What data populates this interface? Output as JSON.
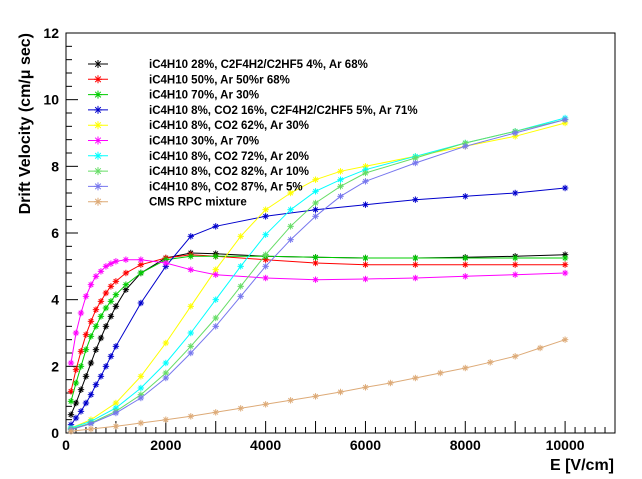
{
  "chart_data": {
    "type": "line",
    "title": "",
    "xlabel": "E [V/cm]",
    "ylabel": "Drift Velocity (cm/μ sec)",
    "xlim": [
      0,
      11000
    ],
    "ylim": [
      0,
      12
    ],
    "x_ticks": [
      0,
      2000,
      4000,
      6000,
      8000,
      10000
    ],
    "y_ticks": [
      0,
      2,
      4,
      6,
      8,
      10,
      12
    ],
    "grid": false,
    "legend_position": "top-left",
    "series": [
      {
        "name": "iC4H10 28%, C2F4H2/C2HF5 4%, Ar 68%",
        "color": "#000000",
        "points": [
          [
            100,
            0.55
          ],
          [
            200,
            0.9
          ],
          [
            300,
            1.3
          ],
          [
            400,
            1.7
          ],
          [
            500,
            2.1
          ],
          [
            600,
            2.5
          ],
          [
            700,
            2.85
          ],
          [
            800,
            3.2
          ],
          [
            900,
            3.5
          ],
          [
            1000,
            3.8
          ],
          [
            1200,
            4.3
          ],
          [
            1500,
            4.8
          ],
          [
            2000,
            5.25
          ],
          [
            2500,
            5.4
          ],
          [
            3000,
            5.38
          ],
          [
            4000,
            5.3
          ],
          [
            5000,
            5.27
          ],
          [
            6000,
            5.25
          ],
          [
            7000,
            5.25
          ],
          [
            8000,
            5.27
          ],
          [
            9000,
            5.3
          ],
          [
            10000,
            5.35
          ]
        ]
      },
      {
        "name": "iC4H10 50%, Ar 50%r 68%",
        "color": "#ff0000",
        "points": [
          [
            100,
            1.25
          ],
          [
            200,
            1.9
          ],
          [
            300,
            2.45
          ],
          [
            400,
            2.95
          ],
          [
            500,
            3.35
          ],
          [
            600,
            3.7
          ],
          [
            700,
            3.95
          ],
          [
            800,
            4.2
          ],
          [
            900,
            4.4
          ],
          [
            1000,
            4.55
          ],
          [
            1200,
            4.8
          ],
          [
            1500,
            5.05
          ],
          [
            2000,
            5.25
          ],
          [
            2500,
            5.35
          ],
          [
            3000,
            5.3
          ],
          [
            4000,
            5.2
          ],
          [
            5000,
            5.1
          ],
          [
            6000,
            5.05
          ],
          [
            7000,
            5.05
          ],
          [
            8000,
            5.05
          ],
          [
            9000,
            5.05
          ],
          [
            10000,
            5.05
          ]
        ]
      },
      {
        "name": "iC4H10 70%, Ar 30%",
        "color": "#00cc00",
        "points": [
          [
            100,
            0.95
          ],
          [
            200,
            1.5
          ],
          [
            300,
            2.0
          ],
          [
            400,
            2.5
          ],
          [
            500,
            2.9
          ],
          [
            600,
            3.2
          ],
          [
            700,
            3.5
          ],
          [
            800,
            3.75
          ],
          [
            900,
            3.95
          ],
          [
            1000,
            4.15
          ],
          [
            1200,
            4.45
          ],
          [
            1500,
            4.8
          ],
          [
            2000,
            5.2
          ],
          [
            2500,
            5.3
          ],
          [
            3000,
            5.3
          ],
          [
            4000,
            5.3
          ],
          [
            5000,
            5.27
          ],
          [
            6000,
            5.25
          ],
          [
            7000,
            5.25
          ],
          [
            8000,
            5.25
          ],
          [
            9000,
            5.25
          ],
          [
            10000,
            5.25
          ]
        ]
      },
      {
        "name": "iC4H10 8%, CO2 16%, C2F4H2/C2HF5 5%, Ar 71%",
        "color": "#0000cc",
        "points": [
          [
            100,
            0.25
          ],
          [
            200,
            0.45
          ],
          [
            300,
            0.65
          ],
          [
            400,
            0.9
          ],
          [
            500,
            1.15
          ],
          [
            600,
            1.45
          ],
          [
            700,
            1.7
          ],
          [
            800,
            2.0
          ],
          [
            900,
            2.3
          ],
          [
            1000,
            2.6
          ],
          [
            1500,
            3.9
          ],
          [
            2000,
            5.0
          ],
          [
            2500,
            5.9
          ],
          [
            3000,
            6.2
          ],
          [
            4000,
            6.5
          ],
          [
            5000,
            6.7
          ],
          [
            6000,
            6.85
          ],
          [
            7000,
            7.0
          ],
          [
            8000,
            7.1
          ],
          [
            9000,
            7.2
          ],
          [
            10000,
            7.35
          ]
        ]
      },
      {
        "name": "iC4H10 8%, CO2 62%, Ar 30%",
        "color": "#ffff00",
        "points": [
          [
            100,
            0.15
          ],
          [
            500,
            0.4
          ],
          [
            1000,
            0.9
          ],
          [
            1500,
            1.7
          ],
          [
            2000,
            2.7
          ],
          [
            2500,
            3.8
          ],
          [
            3000,
            4.9
          ],
          [
            3500,
            5.9
          ],
          [
            4000,
            6.7
          ],
          [
            4500,
            7.2
          ],
          [
            5000,
            7.6
          ],
          [
            5500,
            7.85
          ],
          [
            6000,
            8.0
          ],
          [
            7000,
            8.3
          ],
          [
            8000,
            8.6
          ],
          [
            9000,
            8.9
          ],
          [
            10000,
            9.3
          ]
        ]
      },
      {
        "name": "iC4H10 30%, Ar 70%",
        "color": "#ff00ff",
        "points": [
          [
            100,
            2.1
          ],
          [
            200,
            3.0
          ],
          [
            300,
            3.6
          ],
          [
            400,
            4.1
          ],
          [
            500,
            4.45
          ],
          [
            600,
            4.7
          ],
          [
            700,
            4.85
          ],
          [
            800,
            5.0
          ],
          [
            900,
            5.08
          ],
          [
            1000,
            5.15
          ],
          [
            1200,
            5.2
          ],
          [
            1500,
            5.2
          ],
          [
            2000,
            5.1
          ],
          [
            2500,
            4.9
          ],
          [
            3000,
            4.75
          ],
          [
            4000,
            4.65
          ],
          [
            5000,
            4.6
          ],
          [
            6000,
            4.62
          ],
          [
            7000,
            4.65
          ],
          [
            8000,
            4.7
          ],
          [
            9000,
            4.75
          ],
          [
            10000,
            4.8
          ]
        ]
      },
      {
        "name": "iC4H10 8%, CO2 72%, Ar 20%",
        "color": "#00ffff",
        "points": [
          [
            100,
            0.15
          ],
          [
            500,
            0.35
          ],
          [
            1000,
            0.75
          ],
          [
            1500,
            1.35
          ],
          [
            2000,
            2.1
          ],
          [
            2500,
            3.0
          ],
          [
            3000,
            4.0
          ],
          [
            3500,
            5.0
          ],
          [
            4000,
            5.95
          ],
          [
            4500,
            6.7
          ],
          [
            5000,
            7.25
          ],
          [
            5500,
            7.6
          ],
          [
            6000,
            7.9
          ],
          [
            7000,
            8.3
          ],
          [
            8000,
            8.7
          ],
          [
            9000,
            9.05
          ],
          [
            10000,
            9.45
          ]
        ]
      },
      {
        "name": "iC4H10 8%, CO2 82%, Ar 10%",
        "color": "#66dd66",
        "points": [
          [
            100,
            0.12
          ],
          [
            500,
            0.3
          ],
          [
            1000,
            0.65
          ],
          [
            1500,
            1.15
          ],
          [
            2000,
            1.8
          ],
          [
            2500,
            2.6
          ],
          [
            3000,
            3.45
          ],
          [
            3500,
            4.4
          ],
          [
            4000,
            5.35
          ],
          [
            4500,
            6.2
          ],
          [
            5000,
            6.9
          ],
          [
            5500,
            7.4
          ],
          [
            6000,
            7.8
          ],
          [
            7000,
            8.25
          ],
          [
            8000,
            8.7
          ],
          [
            9000,
            9.05
          ],
          [
            10000,
            9.4
          ]
        ]
      },
      {
        "name": "iC4H10 8%, CO2 87%, Ar 5%",
        "color": "#7777ee",
        "points": [
          [
            100,
            0.1
          ],
          [
            500,
            0.28
          ],
          [
            1000,
            0.6
          ],
          [
            1500,
            1.05
          ],
          [
            2000,
            1.65
          ],
          [
            2500,
            2.4
          ],
          [
            3000,
            3.2
          ],
          [
            3500,
            4.1
          ],
          [
            4000,
            5.0
          ],
          [
            4500,
            5.8
          ],
          [
            5000,
            6.5
          ],
          [
            5500,
            7.1
          ],
          [
            6000,
            7.55
          ],
          [
            7000,
            8.1
          ],
          [
            8000,
            8.6
          ],
          [
            9000,
            9.0
          ],
          [
            10000,
            9.4
          ]
        ]
      },
      {
        "name": "CMS RPC mixture",
        "color": "#ddaa77",
        "points": [
          [
            100,
            0.05
          ],
          [
            500,
            0.12
          ],
          [
            1000,
            0.2
          ],
          [
            1500,
            0.3
          ],
          [
            2000,
            0.4
          ],
          [
            2500,
            0.5
          ],
          [
            3000,
            0.62
          ],
          [
            3500,
            0.74
          ],
          [
            4000,
            0.86
          ],
          [
            4500,
            0.98
          ],
          [
            5000,
            1.1
          ],
          [
            5500,
            1.23
          ],
          [
            6000,
            1.37
          ],
          [
            6500,
            1.5
          ],
          [
            7000,
            1.65
          ],
          [
            7500,
            1.8
          ],
          [
            8000,
            1.95
          ],
          [
            8500,
            2.12
          ],
          [
            9000,
            2.3
          ],
          [
            9500,
            2.55
          ],
          [
            10000,
            2.8
          ]
        ]
      }
    ]
  }
}
